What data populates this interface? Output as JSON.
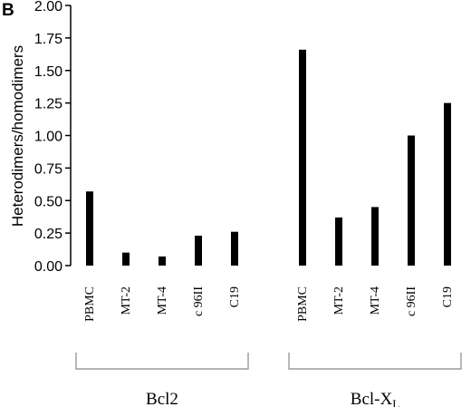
{
  "panel_label": "B",
  "chart_data": {
    "type": "bar",
    "ylabel": "Heterodimers/homodimers",
    "ylim": [
      0,
      2.0
    ],
    "yticks": [
      "0.00",
      "0.25",
      "0.50",
      "0.75",
      "1.00",
      "1.25",
      "1.50",
      "1.75",
      "2.00"
    ],
    "grid": false,
    "bar_color": "#000000",
    "groups": [
      {
        "name": "Bcl2",
        "name_sub": "",
        "categories": [
          "PBMC",
          "MT-2",
          "MT-4",
          "c 96II",
          "C19"
        ],
        "values": [
          0.57,
          0.1,
          0.07,
          0.23,
          0.26
        ]
      },
      {
        "name": "Bcl-X",
        "name_sub": "L",
        "categories": [
          "PBMC",
          "MT-2",
          "MT-4",
          "c 96II",
          "C19"
        ],
        "values": [
          1.66,
          0.37,
          0.45,
          1.0,
          1.25
        ]
      }
    ]
  }
}
